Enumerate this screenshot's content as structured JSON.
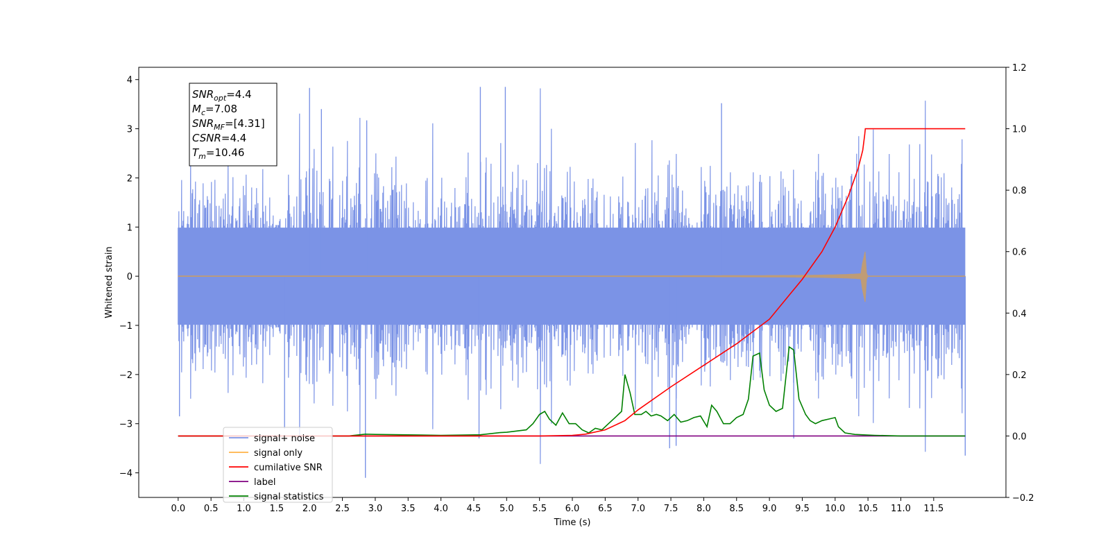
{
  "chart_data": {
    "type": "line",
    "title": "",
    "xlabel": "Time (s)",
    "ylabel": "Whitened strain",
    "y2label": "",
    "xlim": [
      -0.6,
      12.6
    ],
    "ylim": [
      -4.5,
      4.25
    ],
    "y2lim": [
      -0.2,
      1.2
    ],
    "xticks": [
      0.0,
      0.5,
      1.0,
      1.5,
      2.0,
      2.5,
      3.0,
      3.5,
      4.0,
      4.5,
      5.0,
      5.5,
      6.0,
      6.5,
      7.0,
      7.5,
      8.0,
      8.5,
      9.0,
      9.5,
      10.0,
      10.5,
      11.0,
      11.5
    ],
    "xtick_labels": [
      "0.0",
      "0.5",
      "1.0",
      "1.5",
      "2.0",
      "2.5",
      "3.0",
      "3.5",
      "4.0",
      "4.5",
      "5.0",
      "5.5",
      "6.0",
      "6.5",
      "7.0",
      "7.5",
      "8.0",
      "8.5",
      "9.0",
      "9.5",
      "10.0",
      "10.5",
      "11.0",
      "11.5"
    ],
    "yticks": [
      -4,
      -3,
      -2,
      -1,
      0,
      1,
      2,
      3,
      4
    ],
    "ytick_labels": [
      "−4",
      "−3",
      "−2",
      "−1",
      "0",
      "1",
      "2",
      "3",
      "4"
    ],
    "y2ticks": [
      -0.2,
      0.0,
      0.2,
      0.4,
      0.6,
      0.8,
      1.0,
      1.2
    ],
    "y2tick_labels": [
      "−0.2",
      "0.0",
      "0.2",
      "0.4",
      "0.6",
      "0.8",
      "1.0",
      "1.2"
    ],
    "grid": false,
    "legend_position": "lower-left",
    "annotation_box": {
      "position": "top-left",
      "lines": [
        {
          "sym": "SNR",
          "sub": "opt",
          "rest": "=4.4"
        },
        {
          "sym": "M",
          "sub": "c",
          "rest": "=7.08"
        },
        {
          "sym": "SNR",
          "sub": "MF",
          "rest": "=[4.31]"
        },
        {
          "sym": "CSNR",
          "sub": "",
          "rest": "=4.4"
        },
        {
          "sym": "T",
          "sub": "m",
          "rest": "=10.46"
        }
      ]
    },
    "series": [
      {
        "name": "signal+ noise",
        "axis": "left",
        "color": "#7b93e6",
        "kind": "noise",
        "x_range": [
          0.0,
          11.98
        ],
        "typical_range": [
          -1.9,
          1.9
        ],
        "spikes": [
          {
            "x": 2.0,
            "y": 3.83
          },
          {
            "x": 4.6,
            "y": 3.85
          },
          {
            "x": 4.98,
            "y": 3.85
          },
          {
            "x": 2.18,
            "y": 3.4
          },
          {
            "x": 8.27,
            "y": 3.52
          },
          {
            "x": 2.87,
            "y": 3.17
          },
          {
            "x": 2.85,
            "y": -4.1
          },
          {
            "x": 11.98,
            "y": -3.65
          },
          {
            "x": 7.48,
            "y": -3.5
          },
          {
            "x": 7.58,
            "y": -3.45
          },
          {
            "x": 0.02,
            "y": -2.85
          },
          {
            "x": 1.62,
            "y": -3.1
          },
          {
            "x": 4.58,
            "y": -3.3
          },
          {
            "x": 9.37,
            "y": -3.3
          }
        ]
      },
      {
        "name": "signal only",
        "axis": "left",
        "color": "#ffb347",
        "fill_color": "#bf9c76",
        "kind": "chirp",
        "x_range": [
          0.0,
          11.98
        ],
        "merger_time": 10.46,
        "peak_amplitude": 0.42
      },
      {
        "name": "cumilative SNR",
        "axis": "right",
        "color": "#ff0000",
        "x": [
          0.0,
          5.5,
          6.0,
          6.2,
          6.5,
          6.8,
          7.0,
          7.5,
          8.0,
          8.5,
          9.0,
          9.5,
          9.8,
          10.0,
          10.2,
          10.35,
          10.42,
          10.45,
          10.46,
          11.98
        ],
        "values": [
          0.0,
          0.0,
          0.002,
          0.006,
          0.02,
          0.05,
          0.085,
          0.16,
          0.23,
          0.3,
          0.38,
          0.51,
          0.6,
          0.68,
          0.78,
          0.87,
          0.93,
          0.98,
          1.0,
          1.0
        ]
      },
      {
        "name": "label",
        "axis": "right",
        "color": "#800080",
        "x": [
          0.0,
          11.98
        ],
        "values": [
          0.0,
          0.0
        ]
      },
      {
        "name": "signal statistics",
        "axis": "right",
        "color": "#008000",
        "x": [
          0.0,
          2.6,
          2.85,
          3.0,
          3.4,
          3.7,
          4.0,
          4.6,
          4.9,
          5.0,
          5.3,
          5.4,
          5.5,
          5.58,
          5.65,
          5.75,
          5.85,
          5.95,
          6.05,
          6.15,
          6.25,
          6.35,
          6.45,
          6.55,
          6.65,
          6.75,
          6.8,
          6.88,
          6.95,
          7.05,
          7.12,
          7.2,
          7.28,
          7.35,
          7.45,
          7.55,
          7.65,
          7.75,
          7.85,
          7.95,
          8.05,
          8.12,
          8.2,
          8.3,
          8.4,
          8.5,
          8.6,
          8.68,
          8.75,
          8.85,
          8.92,
          9.0,
          9.1,
          9.2,
          9.3,
          9.37,
          9.45,
          9.55,
          9.62,
          9.7,
          9.8,
          9.9,
          10.0,
          10.05,
          10.15,
          10.3,
          10.6,
          11.0,
          11.98
        ],
        "values": [
          0.0,
          0.0,
          0.006,
          0.005,
          0.004,
          0.003,
          0.002,
          0.004,
          0.011,
          0.012,
          0.02,
          0.04,
          0.07,
          0.08,
          0.055,
          0.035,
          0.075,
          0.04,
          0.04,
          0.02,
          0.01,
          0.025,
          0.02,
          0.04,
          0.06,
          0.08,
          0.2,
          0.14,
          0.07,
          0.07,
          0.08,
          0.065,
          0.07,
          0.065,
          0.05,
          0.07,
          0.045,
          0.05,
          0.06,
          0.065,
          0.03,
          0.1,
          0.08,
          0.04,
          0.04,
          0.06,
          0.07,
          0.12,
          0.26,
          0.27,
          0.15,
          0.1,
          0.08,
          0.09,
          0.29,
          0.28,
          0.12,
          0.07,
          0.05,
          0.04,
          0.05,
          0.055,
          0.06,
          0.03,
          0.01,
          0.005,
          0.002,
          0.0,
          0.0
        ]
      }
    ]
  }
}
